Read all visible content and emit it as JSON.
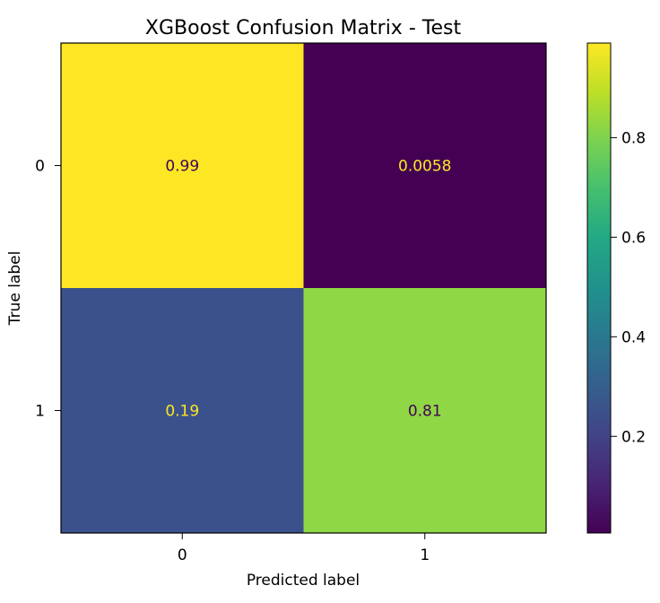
{
  "chart_data": {
    "type": "heatmap",
    "title": "XGBoost Confusion Matrix - Test",
    "xlabel": "Predicted label",
    "ylabel": "True label",
    "x_categories": [
      "0",
      "1"
    ],
    "y_categories": [
      "0",
      "1"
    ],
    "values": [
      [
        0.99,
        0.0058
      ],
      [
        0.19,
        0.81
      ]
    ],
    "cell_labels": [
      [
        "0.99",
        "0.0058"
      ],
      [
        "0.19",
        "0.81"
      ]
    ],
    "cell_colors": [
      [
        "#fde725",
        "#440154"
      ],
      [
        "#3b518b",
        "#8fd744"
      ]
    ],
    "cell_label_colors": [
      [
        "#440154",
        "#fde725"
      ],
      [
        "#fde725",
        "#440154"
      ]
    ],
    "colormap": "viridis",
    "colorbar": {
      "range": [
        0.0058,
        0.99
      ],
      "ticks": [
        0.2,
        0.4,
        0.6,
        0.8
      ],
      "tick_labels": [
        "0.2",
        "0.4",
        "0.6",
        "0.8"
      ]
    }
  }
}
